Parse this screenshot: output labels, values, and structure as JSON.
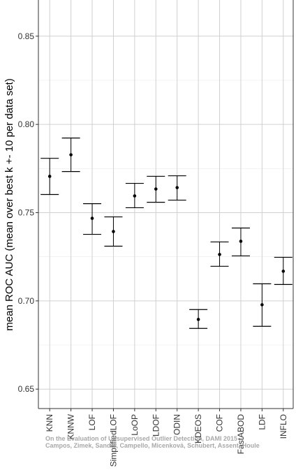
{
  "chart_data": {
    "type": "errorbar",
    "y_label": "mean ROC AUC (mean over best k +- 10 per data set)",
    "categories": [
      "KNN",
      "KNNW",
      "LOF",
      "SimplifiedLOF",
      "LoOP",
      "LDOF",
      "ODIN",
      "KDEOS",
      "COF",
      "FastABOD",
      "LDF",
      "INFLO"
    ],
    "values": [
      0.7706,
      0.7828,
      0.7468,
      0.7393,
      0.7595,
      0.7634,
      0.7642,
      0.6895,
      0.7263,
      0.7338,
      0.6978,
      0.7168
    ],
    "lower": [
      0.7603,
      0.7733,
      0.7377,
      0.731,
      0.7528,
      0.7559,
      0.7571,
      0.6844,
      0.7196,
      0.7255,
      0.6856,
      0.7093
    ],
    "upper": [
      0.7808,
      0.7923,
      0.7551,
      0.7476,
      0.7666,
      0.7706,
      0.7709,
      0.6951,
      0.7334,
      0.7413,
      0.7097,
      0.7247
    ],
    "color": "#000000",
    "ylim": [
      0.639,
      0.8705
    ],
    "yticks": [
      0.65,
      {
        "value": 0.7,
        "label": "0.70"
      },
      0.75,
      {
        "value": 0.8,
        "label": "0.80"
      },
      0.85
    ],
    "grid": true,
    "annotations": [
      "On the Evaluation of Unsupervised Outlier Detection, DAMI 2015",
      "Campos, Zimek, Sander, Campello, Micenková, Schubert, Assent, Houle"
    ]
  }
}
